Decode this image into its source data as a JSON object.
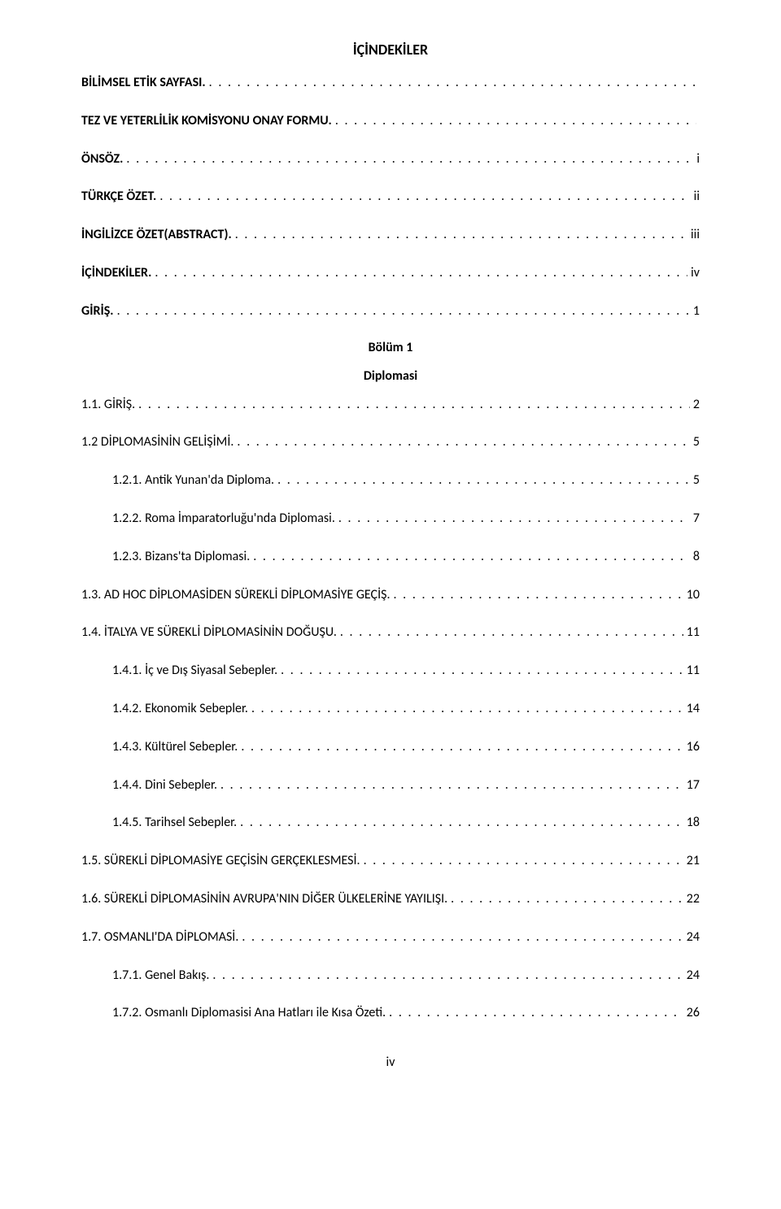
{
  "doc_title": "İÇİNDEKİLER",
  "section1_title": "Bölüm 1",
  "section1_subtitle": "Diplomasi",
  "footer": "iv",
  "entries": [
    {
      "label": "BİLİMSEL ETİK SAYFASI.",
      "page": "",
      "bold": true,
      "indent": 0
    },
    {
      "label": "TEZ VE YETERLİLİK KOMİSYONU ONAY FORMU.",
      "page": "",
      "bold": true,
      "indent": 0
    },
    {
      "label": "ÖNSÖZ.",
      "page": "i",
      "bold": true,
      "indent": 0
    },
    {
      "label": "TÜRKÇE ÖZET.",
      "page": "ii",
      "bold": true,
      "indent": 0
    },
    {
      "label": "İNGİLİZCE ÖZET(ABSTRACT).",
      "page": "iii",
      "bold": true,
      "indent": 0
    },
    {
      "label": "İÇİNDEKİLER.",
      "page": "iv",
      "bold": true,
      "indent": 0
    },
    {
      "label": "GİRİŞ.",
      "page": "1",
      "bold": true,
      "indent": 0
    }
  ],
  "chapter_entries": [
    {
      "label": "1.1. GİRİŞ.",
      "page": "2",
      "bold": false,
      "indent": 0
    },
    {
      "label": "1.2 DİPLOMASİNİN GELİŞİMİ.",
      "page": "5",
      "bold": false,
      "indent": 0
    },
    {
      "label": "1.2.1. Antik Yunan'da Diploma.",
      "page": "5",
      "bold": false,
      "indent": 1
    },
    {
      "label": "1.2.2. Roma İmparatorluğu'nda Diplomasi.",
      "page": "7",
      "bold": false,
      "indent": 1
    },
    {
      "label": "1.2.3. Bizans'ta Diplomasi.",
      "page": "8",
      "bold": false,
      "indent": 1
    },
    {
      "label": "1.3. AD HOC DİPLOMASİDEN SÜREKLİ DİPLOMASİYE GEÇİŞ.",
      "page": "10",
      "bold": false,
      "indent": 0
    },
    {
      "label": "1.4. İTALYA VE SÜREKLİ DİPLOMASİNİN DOĞUŞU.",
      "page": "11",
      "bold": false,
      "indent": 0
    },
    {
      "label": "1.4.1. İç ve Dış Siyasal Sebepler.",
      "page": "11",
      "bold": false,
      "indent": 1
    },
    {
      "label": "1.4.2. Ekonomik Sebepler.",
      "page": "14",
      "bold": false,
      "indent": 1
    },
    {
      "label": "1.4.3. Kültürel Sebepler.",
      "page": "16",
      "bold": false,
      "indent": 1
    },
    {
      "label": "1.4.4. Dini Sebepler.",
      "page": "17",
      "bold": false,
      "indent": 1
    },
    {
      "label": "1.4.5. Tarihsel Sebepler.",
      "page": "18",
      "bold": false,
      "indent": 1
    },
    {
      "label": "1.5. SÜREKLİ DİPLOMASİYE GEÇİSİN GERÇEKLESMESİ.",
      "page": "21",
      "bold": false,
      "indent": 0
    },
    {
      "label": "1.6. SÜREKLİ DİPLOMASİNİN AVRUPA'NIN DİĞER ÜLKELERİNE YAYILIŞI.",
      "page": "22",
      "bold": false,
      "indent": 0
    },
    {
      "label": "1.7. OSMANLI'DA DİPLOMASİ.",
      "page": "24",
      "bold": false,
      "indent": 0
    },
    {
      "label": "1.7.1. Genel Bakış.",
      "page": "24",
      "bold": false,
      "indent": 1
    },
    {
      "label": "1.7.2. Osmanlı Diplomasisi Ana Hatları ile Kısa Özeti.",
      "page": "26",
      "bold": false,
      "indent": 1
    }
  ]
}
